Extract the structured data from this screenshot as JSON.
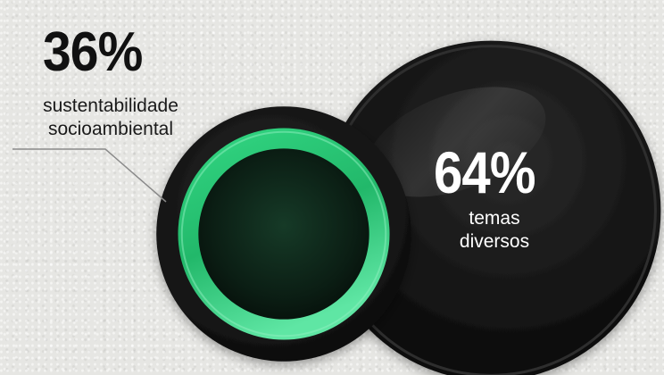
{
  "chart_data": {
    "type": "bubble",
    "categories": [
      "sustentabilidade socioambiental",
      "temas diversos"
    ],
    "values": [
      36,
      64
    ],
    "unit": "%",
    "series": [
      {
        "value": 36,
        "value_label": "36%",
        "label_lines": [
          "sustentabilidade",
          "socioambiental"
        ],
        "color": "#2fd07a"
      },
      {
        "value": 64,
        "value_label": "64%",
        "label_lines": [
          "temas",
          "diversos"
        ],
        "color": "#111111"
      }
    ]
  },
  "colors": {
    "background": "#e6e6e3",
    "dark_circle": "#111111",
    "green_ring": "#2fd07a",
    "text_dark": "#111111",
    "text_light": "#ffffff"
  }
}
